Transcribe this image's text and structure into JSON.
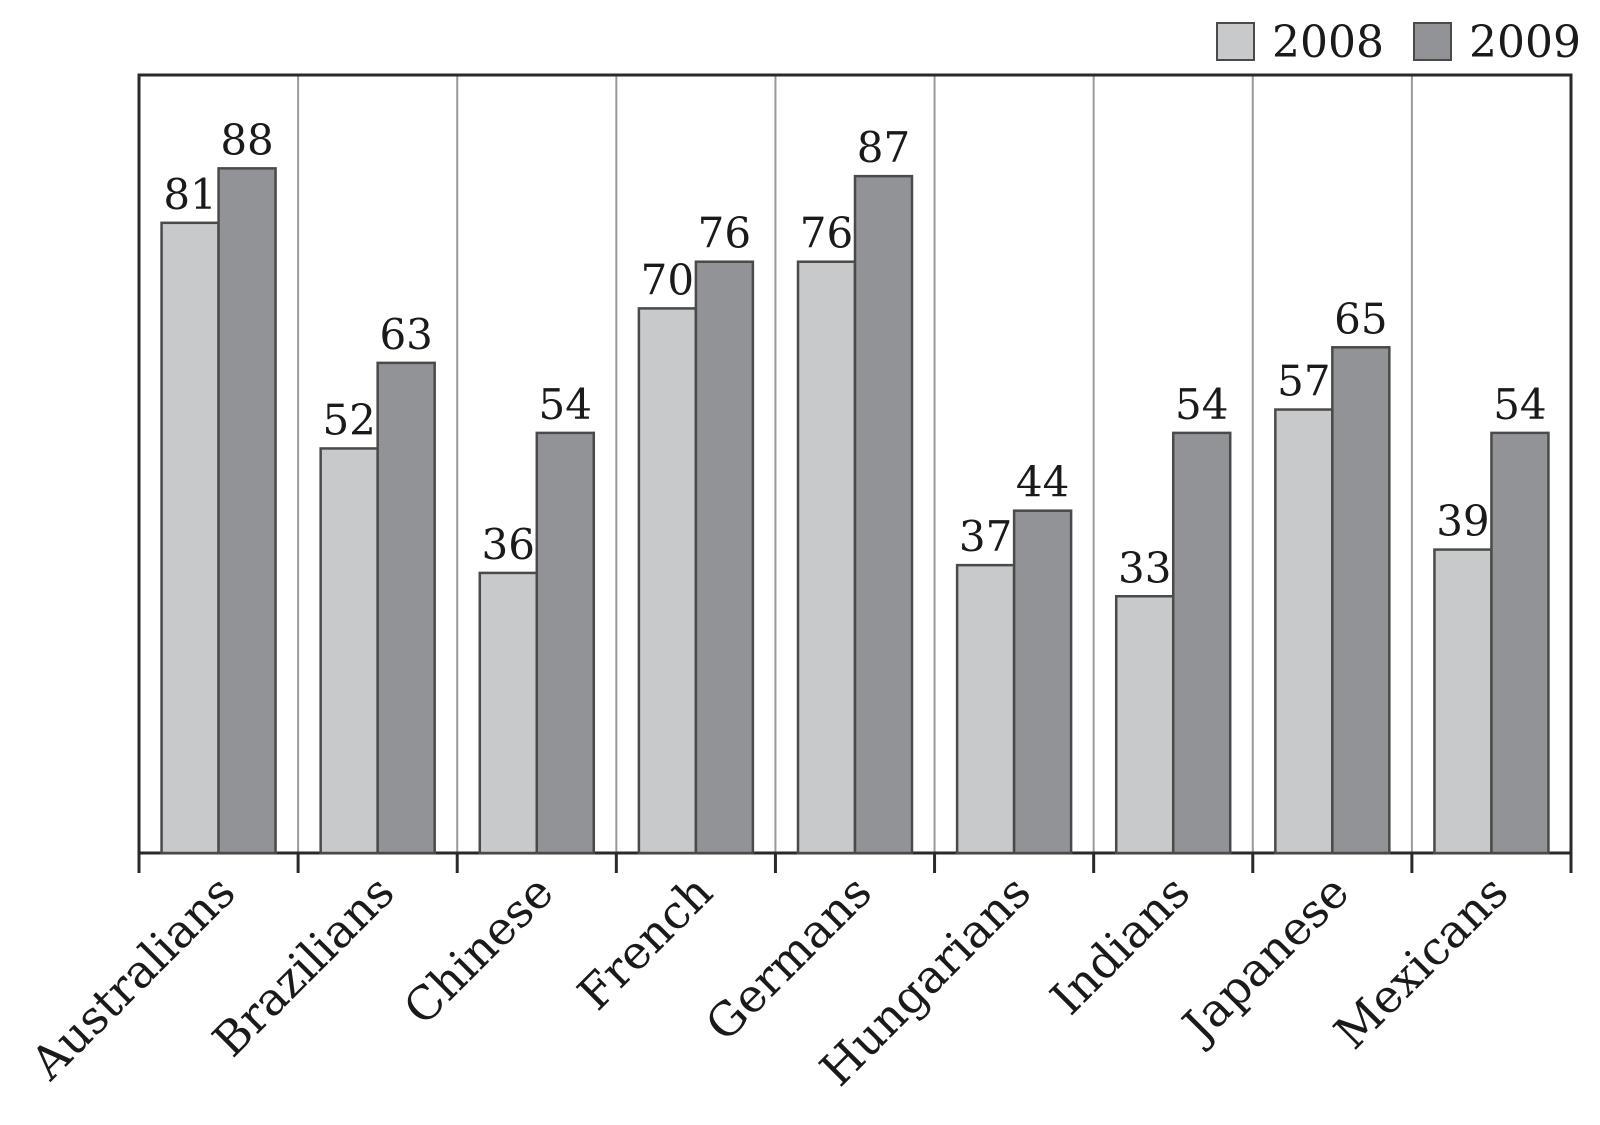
{
  "chart_data": {
    "type": "bar",
    "categories": [
      "Australians",
      "Brazilians",
      "Chinese",
      "French",
      "Germans",
      "Hungarians",
      "Indians",
      "Japanese",
      "Mexicans"
    ],
    "series": [
      {
        "name": "2008",
        "values": [
          81,
          52,
          36,
          70,
          76,
          37,
          33,
          57,
          39
        ],
        "color": "#c8c9cb"
      },
      {
        "name": "2009",
        "values": [
          88,
          63,
          54,
          76,
          87,
          44,
          54,
          65,
          54
        ],
        "color": "#929397"
      }
    ],
    "ylim": [
      0,
      100
    ],
    "grid": "vertical category separators",
    "legend": "top-right",
    "outline_color": "#4a4a4a"
  }
}
